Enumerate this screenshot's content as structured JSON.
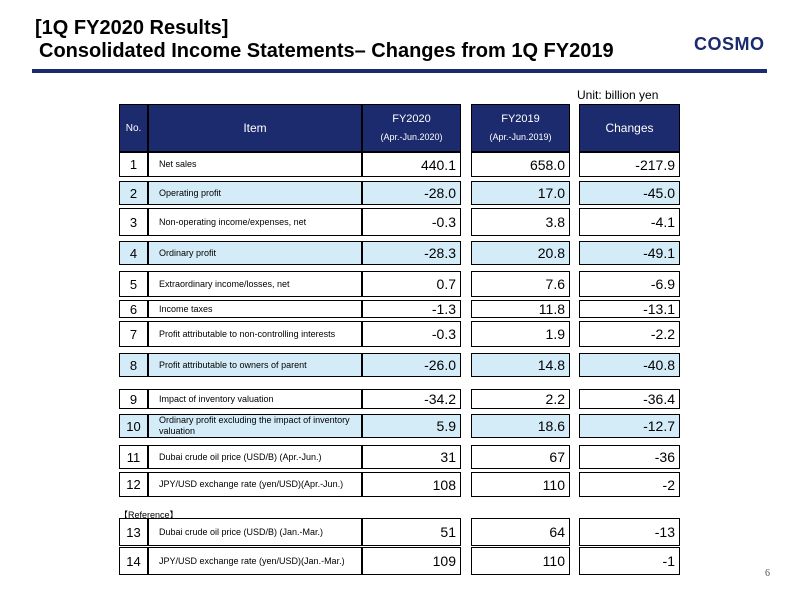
{
  "header": {
    "title_line1": "[1Q FY2020 Results]",
    "title_line2": "Consolidated Income Statements– Changes from 1Q FY2019",
    "logo_text": "COSMO"
  },
  "unit": "Unit: billion yen",
  "columns": {
    "no": "No.",
    "item": "Item",
    "fy2020": "FY2020",
    "fy2020_period": "(Apr.-Jun.2020)",
    "fy2019": "FY2019",
    "fy2019_period": "(Apr.-Jun.2019)",
    "changes": "Changes"
  },
  "rows": [
    {
      "no": "1",
      "item": "Net sales",
      "fy2020": "440.1",
      "fy2019": "658.0",
      "changes": "-217.9",
      "highlight": false
    },
    {
      "no": "2",
      "item": "Operating profit",
      "fy2020": "-28.0",
      "fy2019": "17.0",
      "changes": "-45.0",
      "highlight": true
    },
    {
      "no": "3",
      "item": "Non-operating income/expenses, net",
      "fy2020": "-0.3",
      "fy2019": "3.8",
      "changes": "-4.1",
      "highlight": false
    },
    {
      "no": "4",
      "item": "Ordinary profit",
      "fy2020": "-28.3",
      "fy2019": "20.8",
      "changes": "-49.1",
      "highlight": true
    },
    {
      "no": "5",
      "item": "Extraordinary income/losses, net",
      "fy2020": "0.7",
      "fy2019": "7.6",
      "changes": "-6.9",
      "highlight": false
    },
    {
      "no": "6",
      "item": "Income taxes",
      "fy2020": "-1.3",
      "fy2019": "11.8",
      "changes": "-13.1",
      "highlight": false
    },
    {
      "no": "7",
      "item": "Profit attributable to non-controlling interests",
      "fy2020": "-0.3",
      "fy2019": "1.9",
      "changes": "-2.2",
      "highlight": false
    },
    {
      "no": "8",
      "item": "Profit attributable to owners of parent",
      "fy2020": "-26.0",
      "fy2019": "14.8",
      "changes": "-40.8",
      "highlight": true
    },
    {
      "no": "9",
      "item": "Impact of inventory valuation",
      "fy2020": "-34.2",
      "fy2019": "2.2",
      "changes": "-36.4",
      "highlight": false
    },
    {
      "no": "10",
      "item": "Ordinary profit excluding the impact of inventory valuation",
      "fy2020": "5.9",
      "fy2019": "18.6",
      "changes": "-12.7",
      "highlight": true
    },
    {
      "no": "11",
      "item": "Dubai crude oil price (USD/B) (Apr.-Jun.)",
      "fy2020": "31",
      "fy2019": "67",
      "changes": "-36",
      "highlight": false
    },
    {
      "no": "12",
      "item": "JPY/USD exchange rate (yen/USD)(Apr.-Jun.)",
      "fy2020": "108",
      "fy2019": "110",
      "changes": "-2",
      "highlight": false
    },
    {
      "no": "13",
      "item": "Dubai crude oil price (USD/B) (Jan.-Mar.)",
      "fy2020": "51",
      "fy2019": "64",
      "changes": "-13",
      "highlight": false
    },
    {
      "no": "14",
      "item": "JPY/USD exchange rate (yen/USD)(Jan.-Mar.)",
      "fy2020": "109",
      "fy2019": "110",
      "changes": "-1",
      "highlight": false
    }
  ],
  "reference_label": "【Reference】",
  "page_number": "6"
}
